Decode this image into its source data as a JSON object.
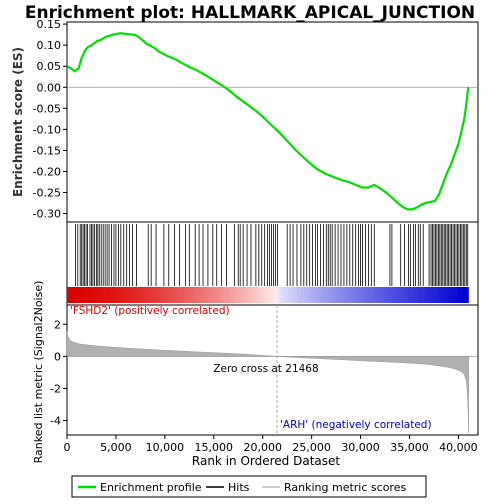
{
  "chart_data": {
    "type": "line",
    "title": "Enrichment plot: HALLMARK_APICAL_JUNCTION",
    "top_panel": {
      "ylabel": "Enrichment score (ES)",
      "ylim": [
        -0.32,
        0.155
      ],
      "yticks": [
        "0.15",
        "0.10",
        "0.05",
        "0.00",
        "-0.05",
        "-0.10",
        "-0.15",
        "-0.20",
        "-0.25",
        "-0.30"
      ],
      "ytick_values": [
        0.15,
        0.1,
        0.05,
        0.0,
        -0.05,
        -0.1,
        -0.15,
        -0.2,
        -0.25,
        -0.3
      ],
      "series": [
        {
          "name": "Enrichment profile",
          "color": "#00dd00",
          "x": [
            0,
            400,
            800,
            1200,
            1500,
            1800,
            2100,
            2500,
            2800,
            3100,
            3400,
            3700,
            4000,
            4300,
            4700,
            5000,
            5300,
            5600,
            6000,
            6300,
            6700,
            7000,
            7400,
            7800,
            8200,
            8600,
            9000,
            9400,
            9800,
            10200,
            10700,
            11200,
            11700,
            12200,
            12700,
            13300,
            13900,
            14500,
            15100,
            15800,
            16500,
            17200,
            17900,
            18600,
            19300,
            20000,
            20800,
            21600,
            22400,
            23200,
            24000,
            24800,
            25600,
            26400,
            27200,
            28000,
            28800,
            29500,
            30200,
            30800,
            31400,
            32000,
            32600,
            33200,
            33800,
            34300,
            34800,
            35300,
            35800,
            36300,
            36800,
            37200,
            37600,
            38000,
            38400,
            38800,
            39200,
            39600,
            40000,
            40300,
            40600,
            40800,
            41000
          ],
          "y": [
            0.05,
            0.045,
            0.038,
            0.045,
            0.07,
            0.085,
            0.095,
            0.1,
            0.105,
            0.11,
            0.112,
            0.116,
            0.12,
            0.122,
            0.125,
            0.126,
            0.128,
            0.128,
            0.127,
            0.126,
            0.125,
            0.124,
            0.118,
            0.11,
            0.102,
            0.098,
            0.092,
            0.085,
            0.08,
            0.075,
            0.07,
            0.065,
            0.058,
            0.052,
            0.046,
            0.04,
            0.032,
            0.024,
            0.015,
            0.005,
            -0.006,
            -0.02,
            -0.032,
            -0.044,
            -0.056,
            -0.07,
            -0.088,
            -0.105,
            -0.125,
            -0.145,
            -0.163,
            -0.18,
            -0.195,
            -0.205,
            -0.213,
            -0.22,
            -0.225,
            -0.232,
            -0.238,
            -0.238,
            -0.232,
            -0.24,
            -0.25,
            -0.262,
            -0.275,
            -0.284,
            -0.29,
            -0.29,
            -0.285,
            -0.278,
            -0.274,
            -0.272,
            -0.27,
            -0.255,
            -0.23,
            -0.205,
            -0.185,
            -0.16,
            -0.135,
            -0.105,
            -0.075,
            -0.04,
            0.0
          ]
        }
      ],
      "baseline": 0
    },
    "hits_panel": {
      "legend_label": "Hits",
      "hit_positions": [
        880,
        1100,
        1350,
        1500,
        1650,
        1800,
        1950,
        2100,
        2350,
        2500,
        2650,
        2800,
        3000,
        3150,
        3300,
        3500,
        3700,
        3900,
        4100,
        4300,
        4550,
        4800,
        5000,
        5250,
        5500,
        5800,
        6100,
        6400,
        6700,
        7100,
        8300,
        8600,
        9100,
        9900,
        10400,
        11000,
        11500,
        12100,
        12500,
        13100,
        13500,
        13900,
        14400,
        14900,
        15300,
        15800,
        16300,
        17100,
        17500,
        17700,
        18000,
        18400,
        18800,
        19300,
        19600,
        19900,
        20200,
        20500,
        20700,
        20900,
        21100,
        21300,
        21500,
        22500,
        22800,
        23100,
        23500,
        23900,
        24200,
        24500,
        24800,
        25100,
        25400,
        25600,
        25900,
        26200,
        26500,
        26700,
        26900,
        27100,
        27400,
        27700,
        28000,
        28300,
        28600,
        28900,
        29200,
        29500,
        29800,
        30000,
        30200,
        30500,
        30800,
        31100,
        31400,
        33000,
        33200,
        34100,
        34500,
        34900,
        35100,
        35400,
        35600,
        35900,
        36100,
        36400,
        37000,
        37200,
        37350,
        37500,
        37650,
        37800,
        37950,
        38100,
        38250,
        38400,
        38550,
        38700,
        38850,
        39000,
        39150,
        39300,
        39450,
        39600,
        39750,
        39900,
        40050,
        40200,
        40350,
        40500,
        40650,
        40800,
        40950
      ]
    },
    "bottom_panel": {
      "ylabel": "Ranked list metric (Signal2Noise)",
      "xlabel": "Rank in Ordered Dataset",
      "ylim": [
        -4.9,
        3.2
      ],
      "yticks": [
        "2",
        "0",
        "-2",
        "-4"
      ],
      "ytick_values": [
        2,
        0,
        -2,
        -4
      ],
      "xlim": [
        0,
        42000
      ],
      "xticks": [
        "0",
        "5,000",
        "10,000",
        "15,000",
        "20,000",
        "25,000",
        "30,000",
        "35,000",
        "40,000"
      ],
      "xtick_values": [
        0,
        5000,
        10000,
        15000,
        20000,
        25000,
        30000,
        35000,
        40000
      ],
      "metric_x": [
        0,
        100,
        300,
        600,
        1000,
        1500,
        2500,
        4000,
        6000,
        8000,
        10000,
        12000,
        14000,
        16000,
        18000,
        20000,
        21468,
        23000,
        25000,
        27000,
        29000,
        31000,
        33000,
        35000,
        36500,
        37500,
        38500,
        39200,
        39800,
        40300,
        40600,
        40800,
        40950,
        41050
      ],
      "metric_y": [
        1.55,
        1.2,
        1.0,
        0.9,
        0.82,
        0.75,
        0.68,
        0.6,
        0.52,
        0.45,
        0.38,
        0.32,
        0.26,
        0.2,
        0.14,
        0.06,
        0.0,
        -0.06,
        -0.12,
        -0.18,
        -0.24,
        -0.3,
        -0.36,
        -0.42,
        -0.48,
        -0.55,
        -0.64,
        -0.72,
        -0.82,
        -0.95,
        -1.15,
        -1.5,
        -2.6,
        -4.8
      ],
      "zero_cross_label": "Zero cross at 21468",
      "zero_cross": 21468,
      "positive_label": "'FSHD2' (positively correlated)",
      "negative_label": "'ARH' (negatively correlated)"
    },
    "legend": [
      {
        "label": "Enrichment profile",
        "color": "#00dd00"
      },
      {
        "label": "Hits",
        "color": "#000000"
      },
      {
        "label": "Ranking metric scores",
        "color": "#bbbbbb"
      }
    ],
    "colors": {
      "positive": "#dd0000",
      "negative": "#0000cc",
      "metric_fill": "#b0b0b0",
      "grid_zero": "#999999"
    }
  }
}
